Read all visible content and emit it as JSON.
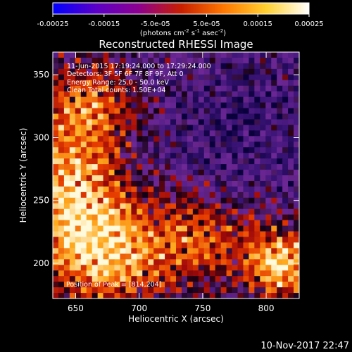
{
  "chart_data": {
    "type": "heatmap",
    "title": "Reconstructed RHESSI Image",
    "xlabel": "Heliocentric X (arcsec)",
    "ylabel": "Heliocentric Y (arcsec)",
    "xlim": [
      632,
      826
    ],
    "ylim": [
      172,
      368
    ],
    "xticks": [
      "650",
      "700",
      "750",
      "800"
    ],
    "xtick_values": [
      650,
      700,
      750,
      800
    ],
    "yticks": [
      "200",
      "250",
      "300",
      "350"
    ],
    "ytick_values": [
      200,
      250,
      300,
      350
    ],
    "colorbar": {
      "range": [
        -0.00025,
        0.00025
      ],
      "ticks": [
        "-0.00025",
        "-0.00015",
        "-5.0e-05",
        "5.0e-05",
        "0.00015",
        "0.00025"
      ],
      "tick_values": [
        -0.00025,
        -0.00015,
        -5e-05,
        5e-05,
        0.00015,
        0.00025
      ],
      "unit_label": "(photons cm",
      "unit_sup1": "-2",
      "unit_mid": " s",
      "unit_sup2": "-1",
      "unit_mid2": " asec",
      "unit_sup3": "-2",
      "unit_end": ")",
      "colors": [
        "#0000ff",
        "#5a00c8",
        "#8c0090",
        "#c81e00",
        "#ff7800",
        "#ffd030",
        "#ffffff"
      ]
    },
    "annotations": [
      "11-Jun-2015 17:19:24.000 to 17:29:24.000",
      "Detectors: 3F 5F 6F 7F 8F 9F, Att 0",
      "Energy Range: 25.0 - 50.0 keV",
      "Clean    Total counts: 1.50E+04"
    ],
    "peak_label": "Position of Peak = [814,204]",
    "peak": [
      814,
      204
    ],
    "grid": false
  },
  "footer": {
    "timestamp": "10-Nov-2017 22:47"
  }
}
